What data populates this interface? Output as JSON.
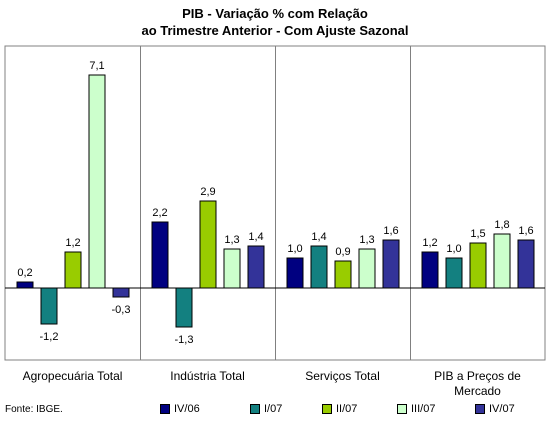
{
  "title_line1": "PIB - Variação % com Relação",
  "title_line2": "ao Trimestre Anterior - Com Ajuste Sazonal",
  "source": "Fonte: IBGE.",
  "chart_data": {
    "type": "bar",
    "title": "PIB - Variação % com Relação ao Trimestre Anterior - Com Ajuste Sazonal",
    "categories": [
      "Agropecuária Total",
      "Indústria Total",
      "Serviços Total",
      "PIB a Preços de Mercado"
    ],
    "series": [
      {
        "name": "IV/06",
        "color": "#000080",
        "values": [
          0.2,
          2.2,
          1.0,
          1.2
        ],
        "labels": [
          "0,2",
          "2,2",
          "1,0",
          "1,2"
        ]
      },
      {
        "name": "I/07",
        "color": "#138080",
        "values": [
          -1.2,
          -1.3,
          1.4,
          1.0
        ],
        "labels": [
          "-1,2",
          "-1,3",
          "1,4",
          "1,0"
        ]
      },
      {
        "name": "II/07",
        "color": "#99CC00",
        "values": [
          1.2,
          2.9,
          0.9,
          1.5
        ],
        "labels": [
          "1,2",
          "2,9",
          "0,9",
          "1,5"
        ]
      },
      {
        "name": "III/07",
        "color": "#CCFFCC",
        "values": [
          7.1,
          1.3,
          1.3,
          1.8
        ],
        "labels": [
          "7,1",
          "1,3",
          "1,3",
          "1,8"
        ]
      },
      {
        "name": "IV/07",
        "color": "#333399",
        "values": [
          -0.3,
          1.4,
          1.6,
          1.6
        ],
        "labels": [
          "-0,3",
          "1,4",
          "1,6",
          "1,6"
        ]
      }
    ],
    "grid": "vertical separators between categories",
    "legend": "bottom"
  }
}
